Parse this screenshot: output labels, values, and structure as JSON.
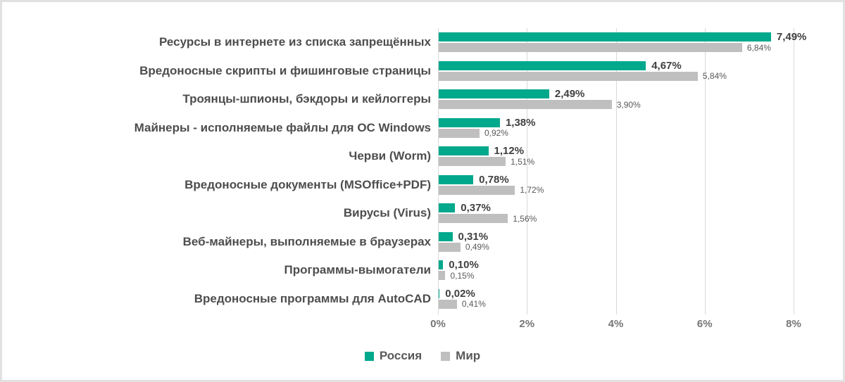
{
  "colors": {
    "russia_bar": "#00A88C",
    "world_bar": "#BFBFBF",
    "gridline": "#D9D9D9",
    "category_text": "#4D4D4D",
    "russia_value_text": "#404040",
    "world_value_text": "#595959",
    "axis_text": "#767676",
    "legend_text": "#595959",
    "frame_border": "#E1E1E1",
    "background": "#FFFFFF"
  },
  "legend": {
    "items": [
      {
        "label": "Россия",
        "color": "#00A88C"
      },
      {
        "label": "Мир",
        "color": "#BFBFBF"
      }
    ]
  },
  "chart_data": {
    "type": "bar",
    "orientation": "horizontal",
    "title": "",
    "xlabel": "",
    "ylabel": "",
    "xlim": [
      0,
      8
    ],
    "x_ticks": [
      "0%",
      "2%",
      "4%",
      "6%",
      "8%"
    ],
    "grid": true,
    "legend_position": "bottom",
    "categories": [
      "Ресурсы в интернете из списка запрещённых",
      "Вредоносные скрипты и фишинговые страницы",
      "Троянцы-шпионы, бэкдоры и кейлоггеры",
      "Майнеры - исполняемые файлы для ОС Windows",
      "Черви (Worm)",
      "Вредоносные документы (MSOffice+PDF)",
      "Вирусы (Virus)",
      "Веб-майнеры, выполняемые в браузерах",
      "Программы-вымогатели",
      "Вредоносные программы для AutoCAD"
    ],
    "series": [
      {
        "name": "Россия",
        "color": "#00A88C",
        "values": [
          7.49,
          4.67,
          2.49,
          1.38,
          1.12,
          0.78,
          0.37,
          0.31,
          0.1,
          0.02
        ],
        "labels": [
          "7,49%",
          "4,67%",
          "2,49%",
          "1,38%",
          "1,12%",
          "0,78%",
          "0,37%",
          "0,31%",
          "0,10%",
          "0,02%"
        ]
      },
      {
        "name": "Мир",
        "color": "#BFBFBF",
        "values": [
          6.84,
          5.84,
          3.9,
          0.92,
          1.51,
          1.72,
          1.56,
          0.49,
          0.15,
          0.41
        ],
        "labels": [
          "6,84%",
          "5,84%",
          "3,90%",
          "0,92%",
          "1,51%",
          "1,72%",
          "1,56%",
          "0,49%",
          "0,15%",
          "0,41%"
        ]
      }
    ]
  }
}
